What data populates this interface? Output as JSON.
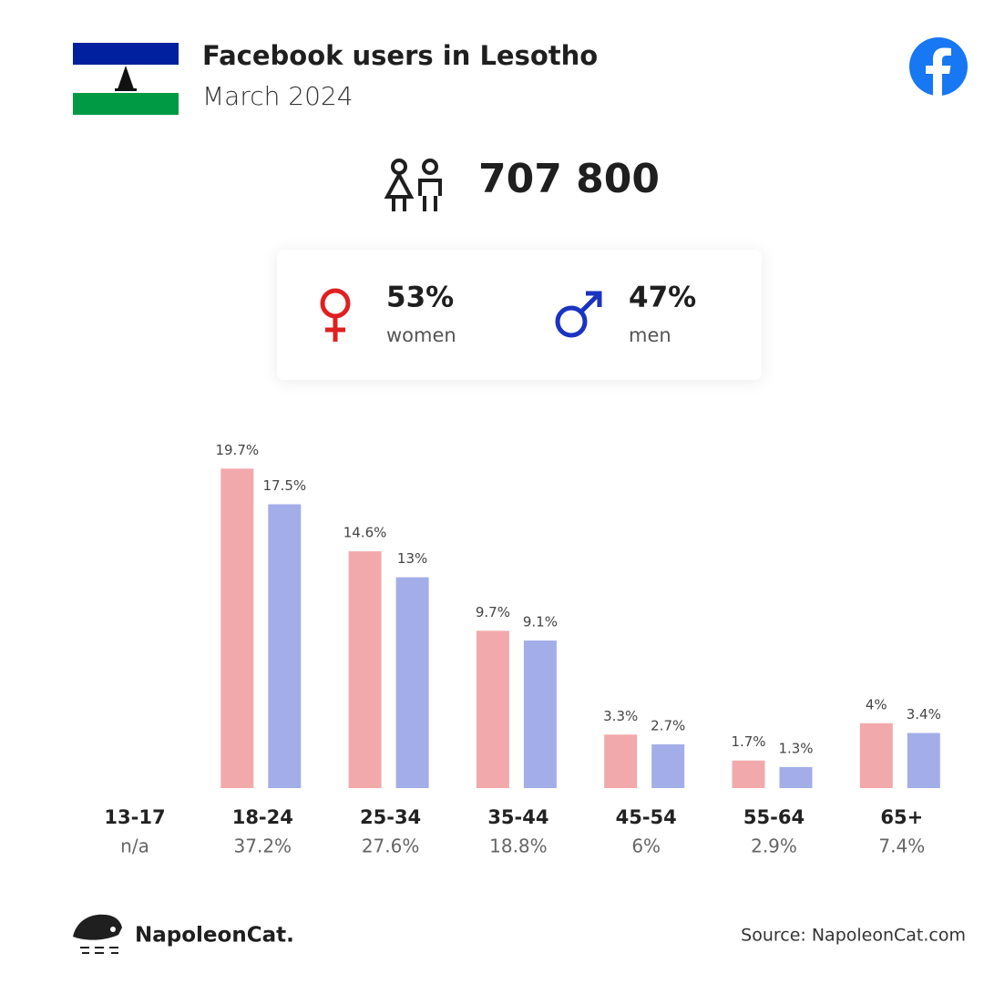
{
  "header": {
    "title": "Facebook users in Lesotho",
    "subtitle": "March 2024"
  },
  "total": "707 800",
  "gender": {
    "women": {
      "share": "53%",
      "label": "women"
    },
    "men": {
      "share": "47%",
      "label": "men"
    }
  },
  "chart_data": {
    "type": "bar",
    "categories": [
      "13-17",
      "18-24",
      "25-34",
      "35-44",
      "45-54",
      "55-64",
      "65+"
    ],
    "series": [
      {
        "color": "#f2a9ab",
        "values": [
          null,
          19.7,
          14.6,
          9.7,
          3.3,
          1.7,
          4
        ],
        "value_labels": [
          null,
          "19.7%",
          "14.6%",
          "9.7%",
          "3.3%",
          "1.7%",
          "4%"
        ]
      },
      {
        "color": "#a3aee8",
        "values": [
          null,
          17.5,
          13,
          9.1,
          2.7,
          1.3,
          3.4
        ],
        "value_labels": [
          null,
          "17.5%",
          "13%",
          "9.1%",
          "2.7%",
          "1.3%",
          "3.4%"
        ]
      }
    ],
    "totals": [
      "n/a",
      "37.2%",
      "27.6%",
      "18.8%",
      "6%",
      "2.9%",
      "7.4%"
    ]
  },
  "footer": {
    "brand": "NapoleonCat.",
    "source": "Source: NapoleonCat.com"
  }
}
